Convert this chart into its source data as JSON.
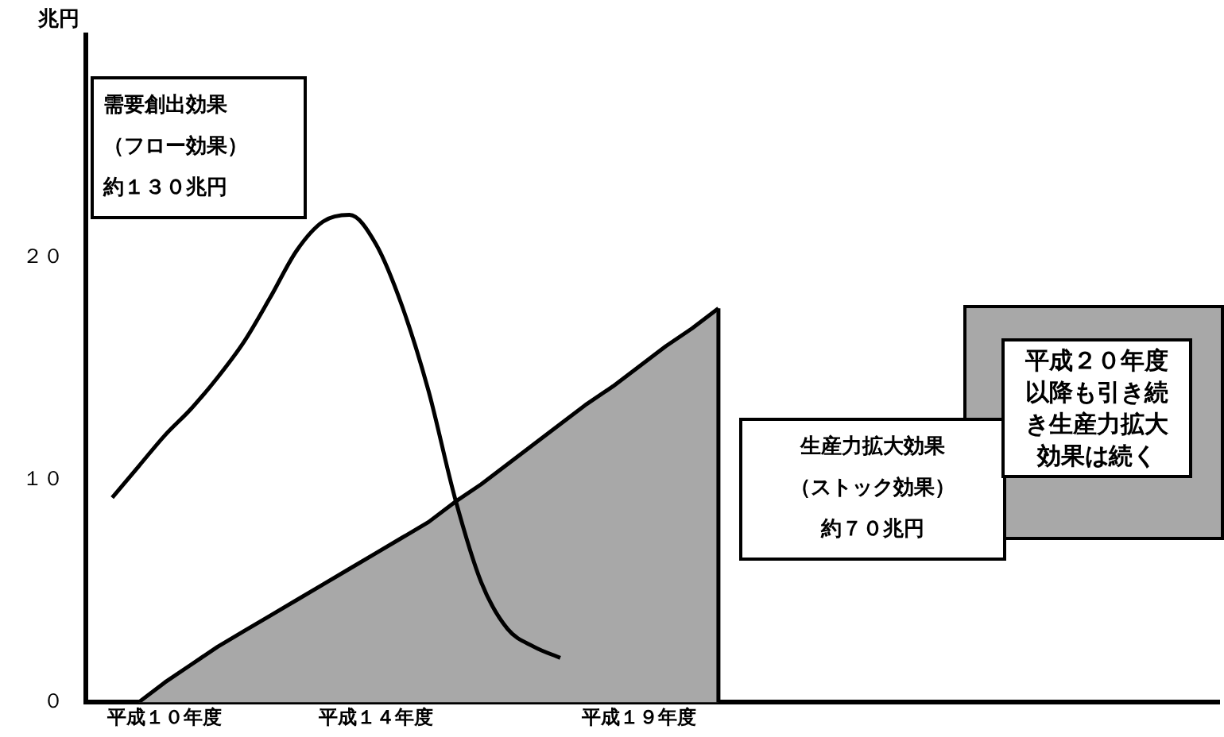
{
  "chart_data": {
    "type": "line",
    "ylabel": "兆円",
    "categories": [
      null,
      null,
      null,
      "平成１０年度",
      null,
      null,
      null,
      null,
      null,
      null,
      null,
      "平成１４年度",
      null,
      null,
      null,
      null,
      null,
      null,
      null,
      null,
      null,
      "平成１９年度",
      null,
      null,
      null,
      null,
      null,
      null,
      null,
      null,
      null,
      null,
      null,
      null,
      null,
      null,
      null,
      null,
      null,
      null,
      null,
      null,
      null,
      null
    ],
    "ylim": [
      0,
      30
    ],
    "yticks": [
      {
        "value": 0,
        "label": "０"
      },
      {
        "value": 10,
        "label": "１０"
      },
      {
        "value": 20,
        "label": "２０"
      }
    ],
    "grid": false,
    "legend": false,
    "marker": "none",
    "annotations": [
      "需要創出効果（フロー効果）約１３０兆円",
      "生産力拡大効果（ストック効果）約７０兆円",
      "平成２０年度以降も引き続き生産力拡大効果は続く"
    ],
    "series": [
      {
        "color": "#000000",
        "values": [
          null,
          9.2,
          10.6,
          12.0,
          13.2,
          14.6,
          16.2,
          18.2,
          20.3,
          21.6,
          21.9,
          20.6,
          17.8,
          14.0,
          9.2,
          5.4,
          3.3,
          2.5,
          2.0,
          null,
          null,
          null,
          null,
          null,
          null,
          null,
          null,
          null,
          null,
          null,
          null,
          null,
          null,
          null,
          null,
          null,
          null,
          null,
          null,
          null,
          null,
          null,
          null,
          null
        ]
      },
      {
        "type": "area",
        "color": "#a8a8a8",
        "values": [
          null,
          null,
          0,
          0.9,
          1.7,
          2.5,
          3.2,
          3.9,
          4.6,
          5.3,
          6.0,
          6.7,
          7.4,
          8.1,
          9.0,
          9.8,
          10.7,
          11.6,
          12.5,
          13.4,
          14.2,
          15.1,
          16.0,
          16.8,
          17.7,
          null,
          null,
          null,
          null,
          null,
          null,
          null,
          null,
          null,
          null,
          null,
          null,
          null,
          null,
          null,
          null,
          null,
          null,
          null
        ]
      }
    ]
  }
}
